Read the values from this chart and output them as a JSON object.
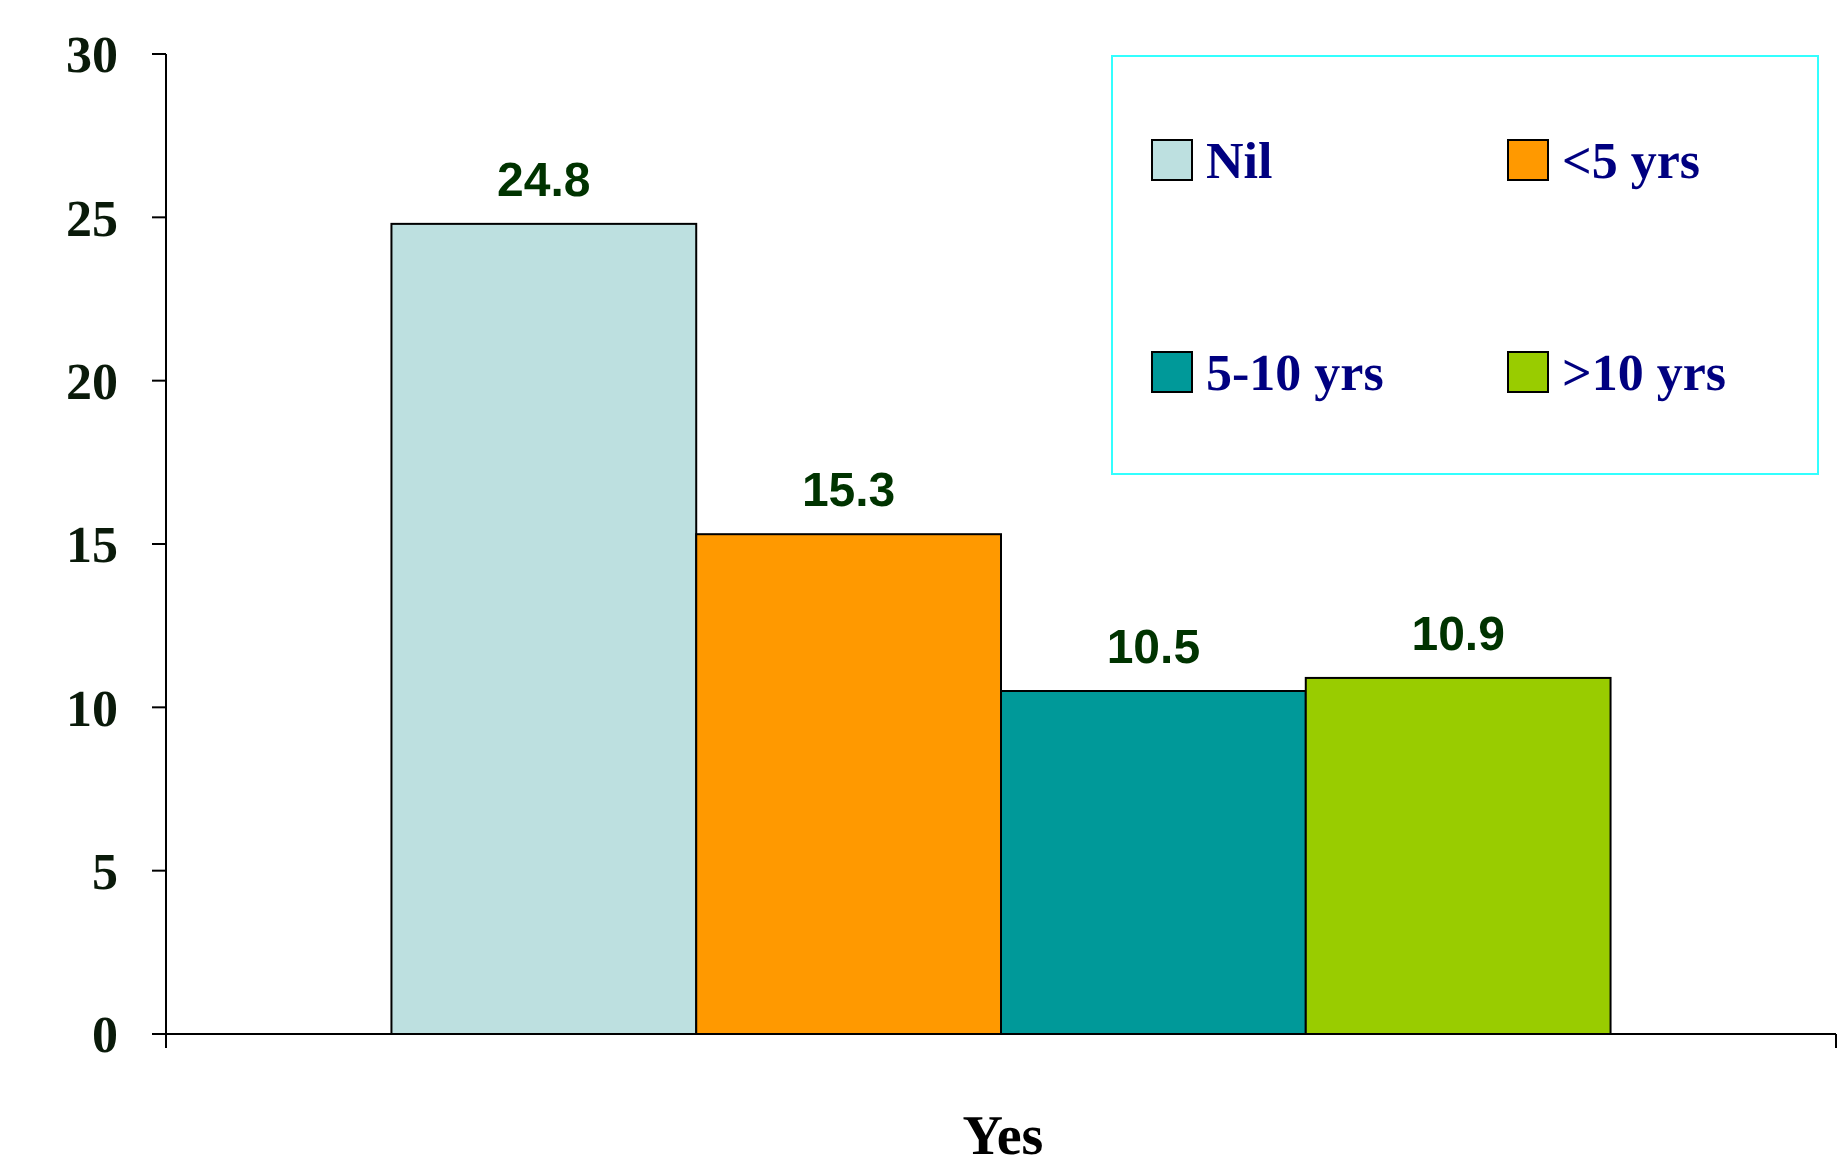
{
  "chart_data": {
    "type": "bar",
    "categories": [
      "Yes"
    ],
    "series": [
      {
        "name": "Nil",
        "color": "#bde0e0",
        "values": [
          24.8
        ]
      },
      {
        "name": "<5 yrs",
        "color": "#ff9900",
        "values": [
          15.3
        ]
      },
      {
        "name": "5-10 yrs",
        "color": "#009999",
        "values": [
          10.5
        ]
      },
      {
        "name": ">10 yrs",
        "color": "#99cc00",
        "values": [
          10.9
        ]
      }
    ],
    "ylim": [
      0,
      30
    ],
    "yticks": [
      0,
      5,
      10,
      15,
      20,
      25,
      30
    ],
    "data_labels": true,
    "legend": "top right",
    "grid": false
  }
}
